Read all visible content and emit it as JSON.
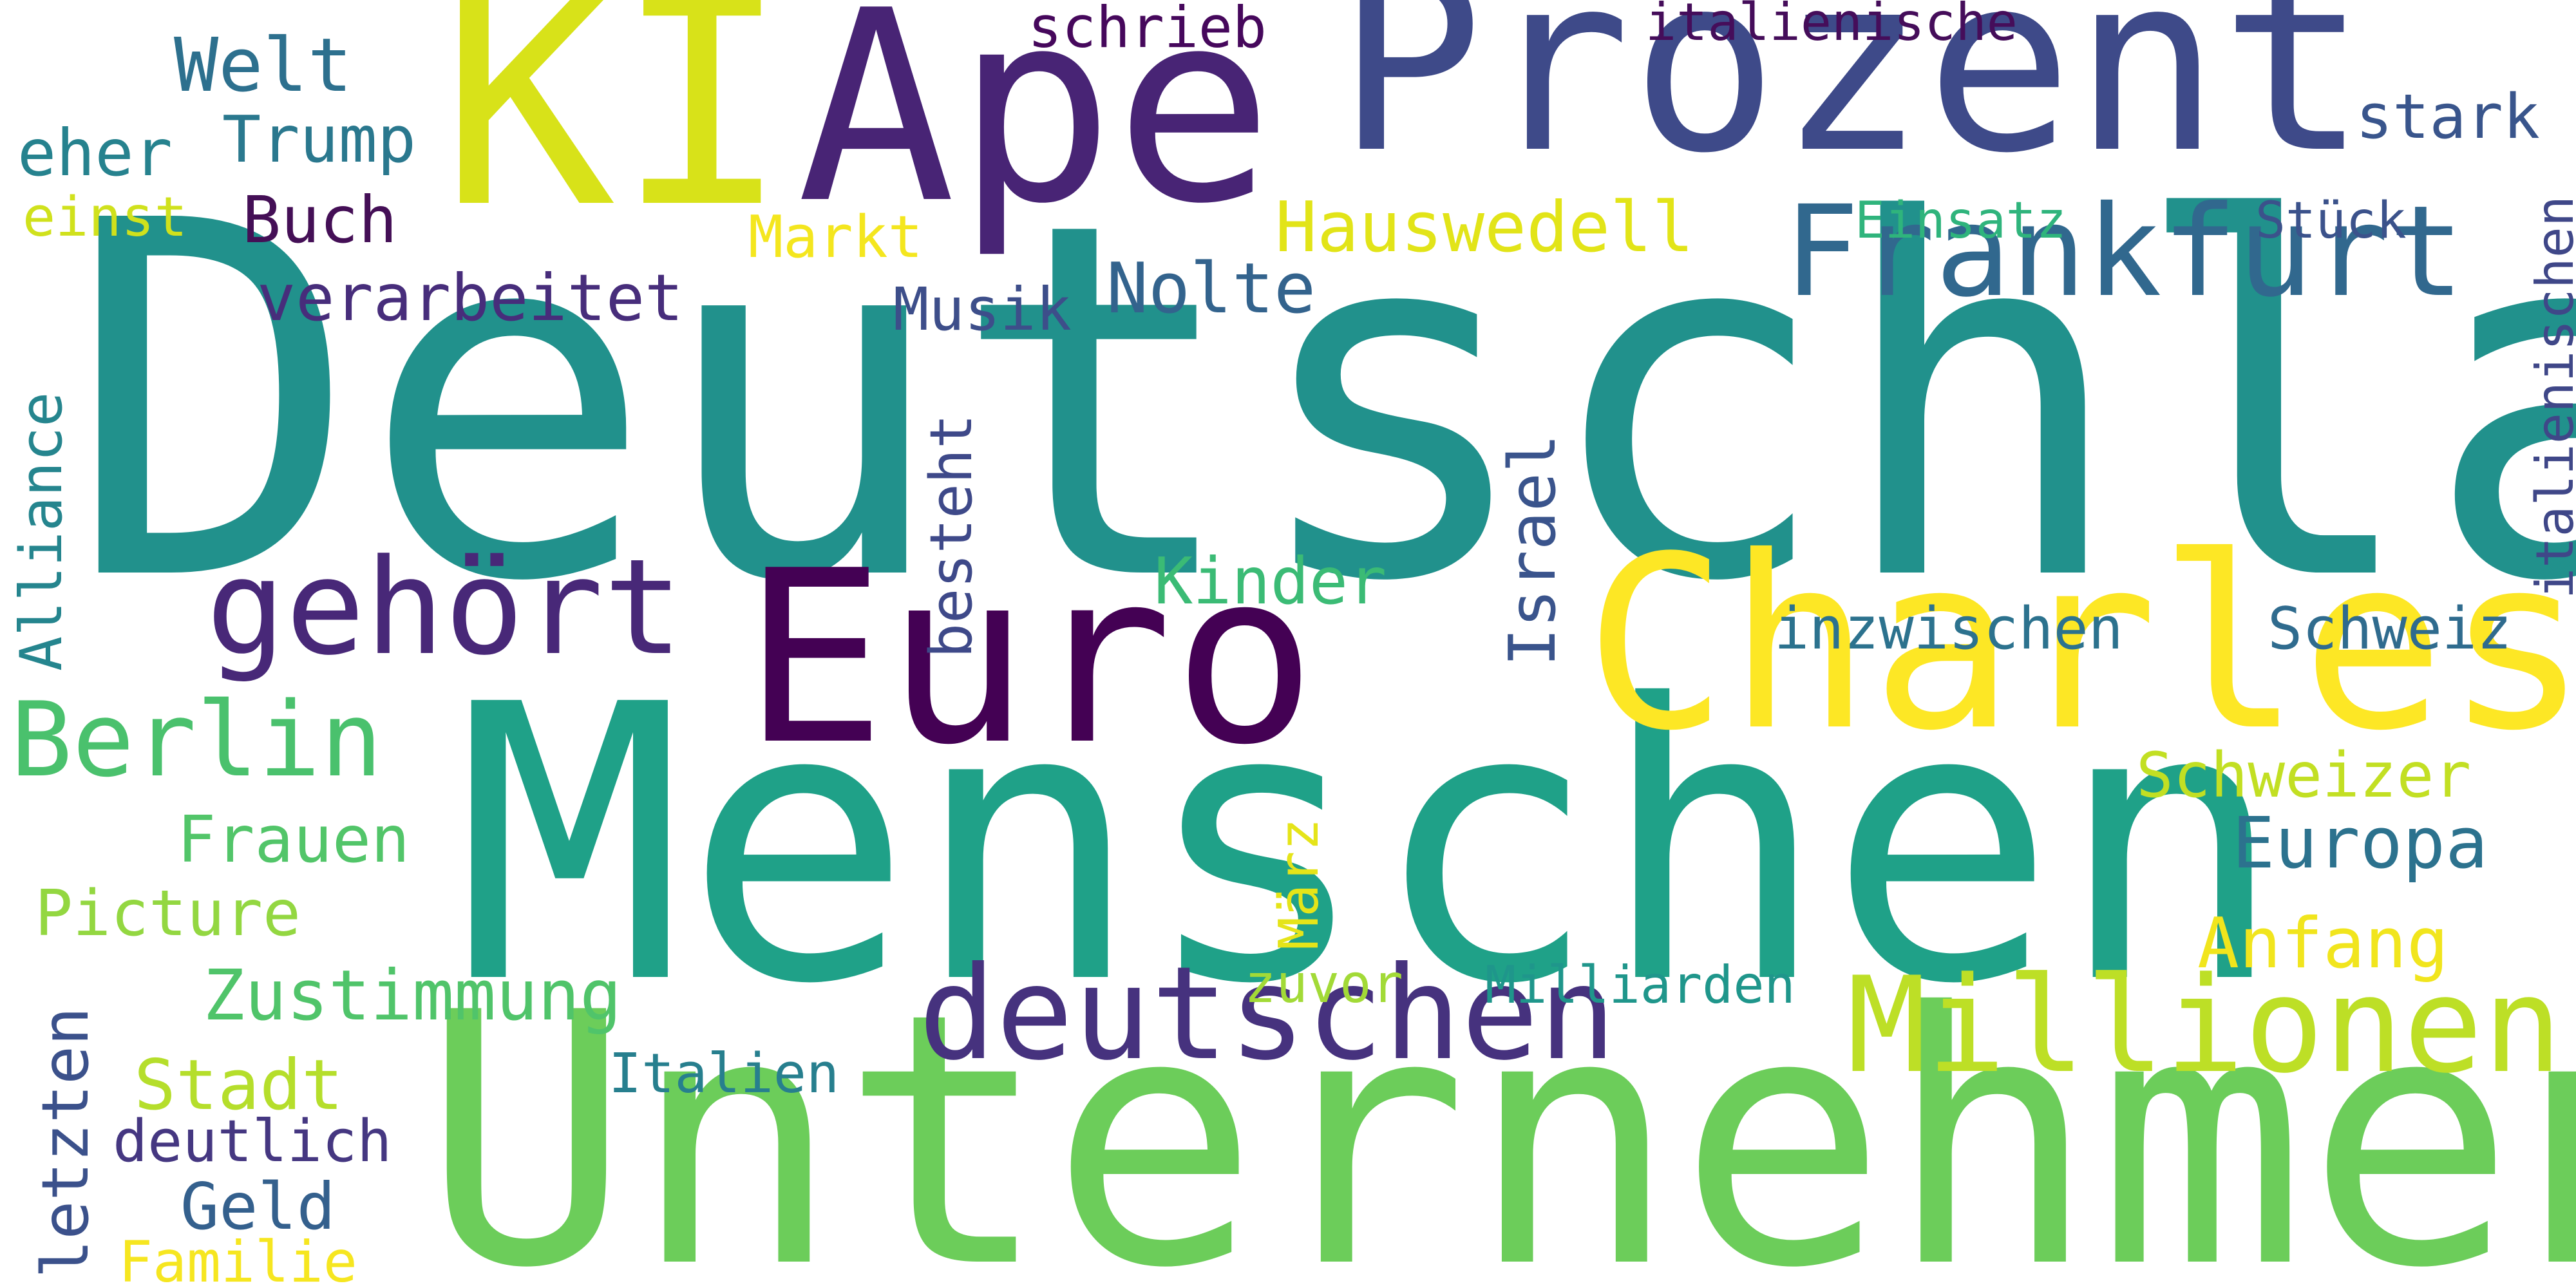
{
  "colors": {
    "background": "#ffffff",
    "dark_purple": "#440154",
    "purple": "#482475",
    "indigo": "#414487",
    "blue": "#355f8d",
    "steel": "#2a788e",
    "teal": "#21918c",
    "sea_green": "#22a884",
    "green": "#44bf70",
    "light_green": "#7ad151",
    "lime": "#bddf26",
    "yellow": "#fde725"
  },
  "words": {
    "deutschland": "Deutschland",
    "menschen": "Menschen",
    "unternehmen": "Unternehmen",
    "prozent": "Prozent",
    "charles": "Charles",
    "euro": "Euro",
    "ape": "Ape",
    "ki": "KI",
    "frankfurt": "Frankfurt",
    "millionen": "Millionen",
    "deutschen": "deutschen",
    "gehoert": "gehört",
    "berlin": "Berlin",
    "europa": "Europa",
    "schweizer": "Schweizer",
    "anfang": "Anfang",
    "schweiz": "Schweiz",
    "inzwischen": "inzwischen",
    "kinder": "Kinder",
    "hauswedell": "Hauswedell",
    "einsatz": "Einsatz",
    "stueck": "Stück",
    "stark": "stark",
    "italienische": "italienische",
    "italienischen": "italienischen",
    "schrieb": "schrieb",
    "nolte": "Nolte",
    "musik": "Musik",
    "verarbeitet": "verarbeitet",
    "markt": "Markt",
    "buch": "Buch",
    "einst": "einst",
    "eher": "eher",
    "trump": "Trump",
    "welt": "Welt",
    "alliance": "Alliance",
    "frauen": "Frauen",
    "picture": "Picture",
    "zustimmung": "Zustimmung",
    "stadt": "Stadt",
    "deutlich": "deutlich",
    "geld": "Geld",
    "familie": "Familie",
    "letzten": "letzten",
    "italien": "Italien",
    "zuvor": "zuvor",
    "milliarden": "Milliarden",
    "besteht": "besteht",
    "israel": "Israel",
    "maerz": "März"
  },
  "word_colors": {
    "deutschland": "#21918c",
    "menschen": "#1fa188",
    "unternehmen": "#6ccd5a",
    "prozent": "#3e4a89",
    "charles": "#fde725",
    "euro": "#440154",
    "ape": "#482475",
    "ki": "#d8e219",
    "frankfurt": "#31688e",
    "millionen": "#bddf26",
    "deutschen": "#46327e",
    "gehoert": "#482878",
    "berlin": "#4ac16d",
    "europa": "#2c728e",
    "schweizer": "#c2df23",
    "anfang": "#f1e51d",
    "schweiz": "#2f6b8e",
    "inzwischen": "#2c728e",
    "kinder": "#3bbb75",
    "hauswedell": "#e2e418",
    "einsatz": "#2fb47c",
    "stueck": "#3b528b",
    "stark": "#39558c",
    "italienische": "#450d5a",
    "italienischen": "#3f4788",
    "schrieb": "#46085c",
    "nolte": "#33638d",
    "musik": "#3d4e8a",
    "verarbeitet": "#472d7b",
    "markt": "#f4e61e",
    "buch": "#440f56",
    "einst": "#d0e11c",
    "eher": "#26828e",
    "trump": "#2a788e",
    "welt": "#2d708e",
    "alliance": "#25858e",
    "frauen": "#52c569",
    "picture": "#93d741",
    "zustimmung": "#50c46a",
    "stadt": "#b5de2b",
    "deutlich": "#453781",
    "geld": "#34608d",
    "familie": "#f6e620",
    "letzten": "#3b518b",
    "italien": "#277f8e",
    "zuvor": "#a2da37",
    "milliarden": "#1f968b",
    "besteht": "#3e4989",
    "israel": "#3a548c",
    "maerz": "#e5e419"
  }
}
